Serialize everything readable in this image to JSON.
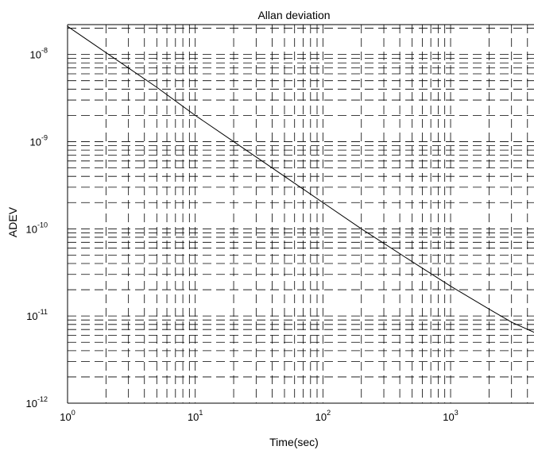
{
  "chart_data": {
    "type": "line",
    "title": "Allan deviation",
    "xlabel": "Time(sec)",
    "ylabel": "ADEV",
    "xscale": "log",
    "yscale": "log",
    "xlim": [
      1,
      4500
    ],
    "ylim": [
      1e-12,
      2.2e-08
    ],
    "grid": "on",
    "x_ticks": [
      {
        "base": "10",
        "exp": "0"
      },
      {
        "base": "10",
        "exp": "1"
      },
      {
        "base": "10",
        "exp": "2"
      },
      {
        "base": "10",
        "exp": "3"
      }
    ],
    "y_ticks": [
      {
        "base": "10",
        "exp": "-8"
      },
      {
        "base": "10",
        "exp": "-9"
      },
      {
        "base": "10",
        "exp": "-10"
      },
      {
        "base": "10",
        "exp": "-11"
      },
      {
        "base": "10",
        "exp": "-12"
      }
    ],
    "series": [
      {
        "x": [
          1,
          2,
          5,
          10,
          20,
          50,
          100,
          200,
          500,
          1000,
          2000,
          3000,
          4500
        ],
        "y": [
          2.1e-08,
          1.05e-08,
          4.2e-09,
          2e-09,
          1e-09,
          4e-10,
          2e-10,
          1e-10,
          4.2e-11,
          2.2e-11,
          1.2e-11,
          8.5e-12,
          6.5e-12
        ]
      }
    ]
  }
}
